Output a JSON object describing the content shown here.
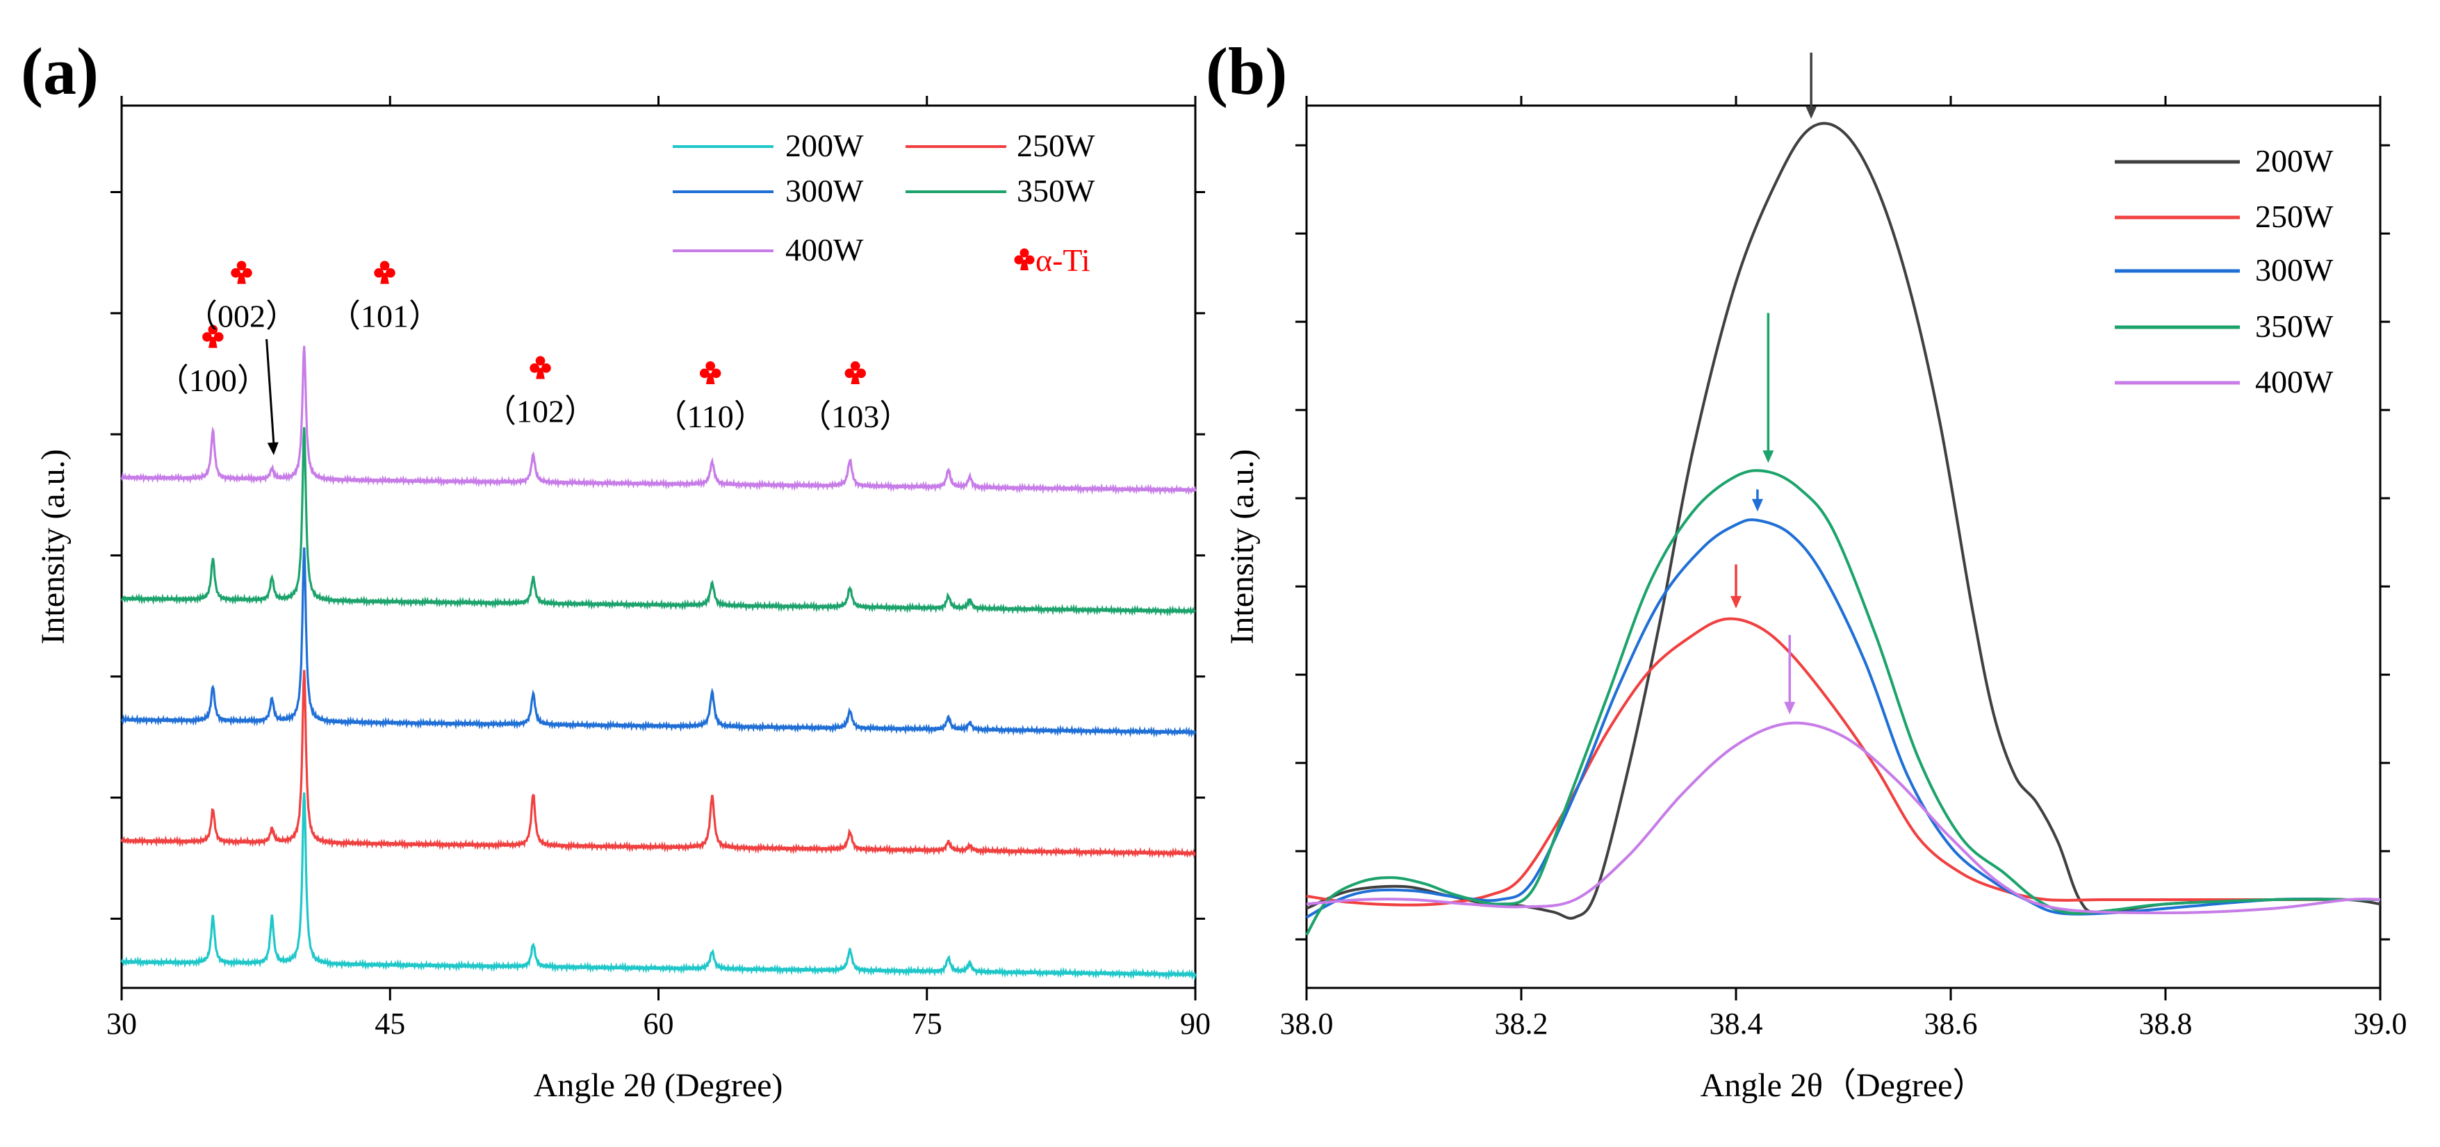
{
  "chart_data": [
    {
      "type": "line",
      "panel_label": "(a)",
      "title": "",
      "xlabel": "Angle 2θ (Degree)",
      "ylabel": "Intensity (a.u.)",
      "xlim": [
        30,
        90
      ],
      "xticks": [
        30,
        45,
        60,
        75,
        90
      ],
      "x_tick_labels": [
        "30",
        "45",
        "60",
        "75",
        "90"
      ],
      "ylim": [
        -0.15,
        4.95
      ],
      "y_tick_values": [
        0.25,
        0.95,
        1.65,
        2.35,
        3.05,
        3.75,
        4.45
      ],
      "grid": false,
      "legend_position": "top-right",
      "peaks": [
        {
          "x": 35.1,
          "width": 0.12
        },
        {
          "x": 38.4,
          "width": 0.12
        },
        {
          "x": 40.2,
          "width": 0.12
        },
        {
          "x": 53.0,
          "width": 0.13
        },
        {
          "x": 63.0,
          "width": 0.14
        },
        {
          "x": 70.7,
          "width": 0.14
        },
        {
          "x": 76.2,
          "width": 0.13
        },
        {
          "x": 77.4,
          "width": 0.13
        }
      ],
      "series": [
        {
          "name": "200W",
          "color": "#1fc7c9",
          "offset": 0.0,
          "intensities": [
            0.27,
            0.27,
            1.0,
            0.13,
            0.1,
            0.12,
            0.08,
            0.05
          ]
        },
        {
          "name": "250W",
          "color": "#f04040",
          "offset": 0.7,
          "intensities": [
            0.19,
            0.08,
            1.0,
            0.3,
            0.3,
            0.1,
            0.05,
            0.03
          ]
        },
        {
          "name": "300W",
          "color": "#1f6fd6",
          "offset": 1.4,
          "intensities": [
            0.2,
            0.13,
            1.0,
            0.18,
            0.2,
            0.1,
            0.07,
            0.04
          ]
        },
        {
          "name": "350W",
          "color": "#1ca36c",
          "offset": 2.1,
          "intensities": [
            0.24,
            0.13,
            1.0,
            0.15,
            0.13,
            0.11,
            0.07,
            0.05
          ]
        },
        {
          "name": "400W",
          "color": "#c77ce8",
          "offset": 2.8,
          "intensities": [
            0.28,
            0.06,
            0.77,
            0.16,
            0.13,
            0.15,
            0.1,
            0.06
          ]
        }
      ],
      "annotations": [
        {
          "label": "（100）",
          "x": 35.1,
          "y": 3.3
        },
        {
          "label": "（002）",
          "x": 36.7,
          "y": 3.67
        },
        {
          "label": "（101）",
          "x": 44.7,
          "y": 3.67
        },
        {
          "label": "（102）",
          "x": 53.4,
          "y": 3.12
        },
        {
          "label": "（110）",
          "x": 62.9,
          "y": 3.09
        },
        {
          "label": "（103）",
          "x": 71.0,
          "y": 3.09
        }
      ],
      "arrow_002": {
        "from": [
          38.1,
          3.6
        ],
        "to": [
          38.5,
          2.93
        ]
      },
      "phase_legend": "α-Ti"
    },
    {
      "type": "line",
      "panel_label": "(b)",
      "title": "",
      "xlabel": "Angle 2θ（Degree）",
      "ylabel": "Intensity (a.u.)",
      "xlim": [
        38.0,
        39.0
      ],
      "xticks": [
        38.0,
        38.2,
        38.4,
        38.6,
        38.8,
        39.0
      ],
      "x_tick_labels": [
        "38.0",
        "38.2",
        "38.4",
        "38.6",
        "38.8",
        "39.0"
      ],
      "ylim": [
        0,
        1.0
      ],
      "y_tick_values": [
        0.055,
        0.155,
        0.255,
        0.355,
        0.455,
        0.555,
        0.655,
        0.755,
        0.855,
        0.955
      ],
      "grid": false,
      "legend_position": "top-right",
      "series": [
        {
          "name": "200W",
          "color": "#404040",
          "x": [
            38.0,
            38.04,
            38.09,
            38.13,
            38.17,
            38.2,
            38.23,
            38.25,
            38.27,
            38.3,
            38.33,
            38.36,
            38.4,
            38.44,
            38.47,
            38.5,
            38.53,
            38.56,
            38.59,
            38.62,
            38.64,
            38.66,
            38.68,
            38.7,
            38.72,
            38.74,
            38.8,
            38.9,
            38.97,
            39.0
          ],
          "y": [
            0.09,
            0.11,
            0.115,
            0.105,
            0.095,
            0.093,
            0.086,
            0.08,
            0.11,
            0.25,
            0.42,
            0.61,
            0.8,
            0.92,
            0.975,
            0.97,
            0.91,
            0.8,
            0.64,
            0.43,
            0.31,
            0.24,
            0.21,
            0.165,
            0.1,
            0.085,
            0.095,
            0.1,
            0.1,
            0.095
          ]
        },
        {
          "name": "250W",
          "color": "#f04040",
          "x": [
            38.0,
            38.04,
            38.09,
            38.13,
            38.17,
            38.2,
            38.24,
            38.28,
            38.32,
            38.36,
            38.39,
            38.42,
            38.45,
            38.49,
            38.53,
            38.57,
            38.61,
            38.65,
            38.69,
            38.74,
            38.8,
            38.9,
            38.97,
            39.0
          ],
          "y": [
            0.104,
            0.097,
            0.094,
            0.096,
            0.105,
            0.125,
            0.2,
            0.29,
            0.36,
            0.4,
            0.418,
            0.41,
            0.38,
            0.32,
            0.25,
            0.17,
            0.13,
            0.11,
            0.1,
            0.1,
            0.1,
            0.1,
            0.1,
            0.1
          ]
        },
        {
          "name": "300W",
          "color": "#1f6fd6",
          "x": [
            38.0,
            38.03,
            38.06,
            38.1,
            38.14,
            38.18,
            38.21,
            38.25,
            38.29,
            38.33,
            38.37,
            38.4,
            38.42,
            38.45,
            38.48,
            38.52,
            38.56,
            38.6,
            38.64,
            38.67,
            38.7,
            38.75,
            38.8,
            38.9,
            38.97,
            39.0
          ],
          "y": [
            0.08,
            0.1,
            0.11,
            0.11,
            0.103,
            0.1,
            0.12,
            0.22,
            0.34,
            0.44,
            0.5,
            0.525,
            0.53,
            0.515,
            0.47,
            0.37,
            0.24,
            0.16,
            0.12,
            0.1,
            0.085,
            0.085,
            0.09,
            0.1,
            0.1,
            0.1
          ]
        },
        {
          "name": "350W",
          "color": "#1ca36c",
          "x": [
            38.0,
            38.02,
            38.05,
            38.08,
            38.11,
            38.14,
            38.18,
            38.21,
            38.24,
            38.28,
            38.32,
            38.36,
            38.4,
            38.43,
            38.46,
            38.49,
            38.53,
            38.57,
            38.61,
            38.65,
            38.68,
            38.71,
            38.75,
            38.8,
            38.9,
            38.97,
            39.0
          ],
          "y": [
            0.06,
            0.1,
            0.12,
            0.125,
            0.118,
            0.105,
            0.095,
            0.11,
            0.2,
            0.33,
            0.46,
            0.54,
            0.58,
            0.585,
            0.565,
            0.52,
            0.4,
            0.26,
            0.17,
            0.13,
            0.1,
            0.085,
            0.088,
            0.095,
            0.1,
            0.1,
            0.1
          ]
        },
        {
          "name": "400W",
          "color": "#c77ce8",
          "x": [
            38.0,
            38.05,
            38.1,
            38.15,
            38.2,
            38.25,
            38.3,
            38.35,
            38.4,
            38.45,
            38.5,
            38.55,
            38.6,
            38.65,
            38.7,
            38.8,
            38.9,
            38.97,
            39.0
          ],
          "y": [
            0.095,
            0.1,
            0.1,
            0.095,
            0.092,
            0.1,
            0.15,
            0.22,
            0.275,
            0.3,
            0.285,
            0.235,
            0.17,
            0.115,
            0.09,
            0.085,
            0.09,
            0.1,
            0.1
          ]
        }
      ],
      "peak_arrows": [
        {
          "series": "200W",
          "x": 38.47,
          "y_from": 1.06,
          "y_to": 0.985
        },
        {
          "series": "350W",
          "x": 38.43,
          "y_from": 0.765,
          "y_to": 0.595
        },
        {
          "series": "300W",
          "x": 38.42,
          "y_from": 0.565,
          "y_to": 0.54
        },
        {
          "series": "250W",
          "x": 38.4,
          "y_from": 0.48,
          "y_to": 0.43
        },
        {
          "series": "400W",
          "x": 38.45,
          "y_from": 0.4,
          "y_to": 0.31
        }
      ]
    }
  ]
}
